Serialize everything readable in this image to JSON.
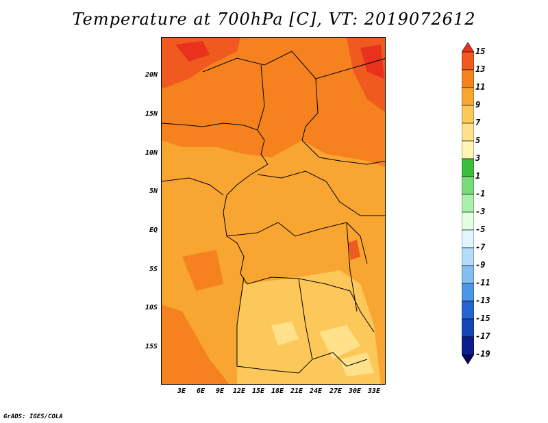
{
  "title": "Temperature at 700hPa [C], VT: 2019072612",
  "footer": "GrADS: IGES/COLA",
  "map": {
    "y_ticks": [
      "20N",
      "15N",
      "10N",
      "5N",
      "EQ",
      "5S",
      "10S",
      "15S"
    ],
    "x_ticks": [
      "3E",
      "6E",
      "9E",
      "12E",
      "15E",
      "18E",
      "21E",
      "24E",
      "27E",
      "30E",
      "33E"
    ]
  },
  "colorbar": {
    "labels": [
      "15",
      "13",
      "11",
      "9",
      "7",
      "5",
      "3",
      "1",
      "-1",
      "-3",
      "-5",
      "-7",
      "-9",
      "-11",
      "-13",
      "-15",
      "-17",
      "-19"
    ],
    "colors": [
      "#e8321e",
      "#f05a1e",
      "#f5821e",
      "#f9a532",
      "#fcc85a",
      "#ffe18c",
      "#fff5b4",
      "#3cbe3c",
      "#78dc78",
      "#aaf0aa",
      "#e1ffe1",
      "#e1f5ff",
      "#b4dcfa",
      "#82bef0",
      "#4b96e6",
      "#2364d2",
      "#1446b4",
      "#0a1e8c",
      "#05055f"
    ]
  }
}
